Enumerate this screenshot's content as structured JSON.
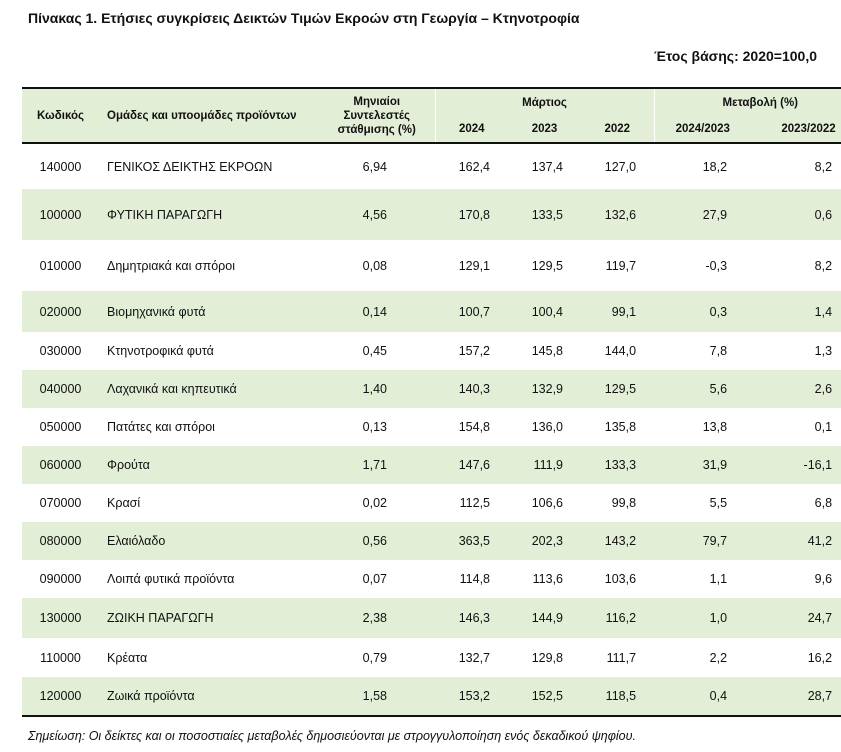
{
  "title": "Πίνακας 1. Ετήσιες συγκρίσεις Δεικτών Τιμών Εκροών στη Γεωργία – Κτηνοτροφία",
  "base_year": "Έτος βάσης: 2020=100,0",
  "headers": {
    "code": "Κωδικός",
    "name": "Ομάδες και υποομάδες προϊόντων",
    "weights": "Μηνιαίοι Συντελεστές στάθμισης (%)",
    "month_group": "Μάρτιος",
    "years": [
      "2024",
      "2023",
      "2022"
    ],
    "change_group": "Μεταβολή (%)",
    "changes": [
      "2024/2023",
      "2023/2022"
    ]
  },
  "rows": [
    {
      "code": "140000",
      "name": "ΓΕΝΙΚΟΣ ΔΕΙΚΤΗΣ ΕΚΡΟΩΝ",
      "weight": "6,94",
      "y2024": "162,4",
      "y2023": "137,4",
      "y2022": "127,0",
      "ch1": "18,2",
      "ch2": "8,2",
      "shaded": false
    },
    {
      "code": "100000",
      "name": "ΦΥΤΙΚΗ ΠΑΡΑΓΩΓΗ",
      "weight": "4,56",
      "y2024": "170,8",
      "y2023": "133,5",
      "y2022": "132,6",
      "ch1": "27,9",
      "ch2": "0,6",
      "shaded": true
    },
    {
      "code": "010000",
      "name": "Δημητριακά και σπόροι",
      "weight": "0,08",
      "y2024": "129,1",
      "y2023": "129,5",
      "y2022": "119,7",
      "ch1": "-0,3",
      "ch2": "8,2",
      "shaded": false
    },
    {
      "code": "020000",
      "name": "Βιομηχανικά φυτά",
      "weight": "0,14",
      "y2024": "100,7",
      "y2023": "100,4",
      "y2022": "99,1",
      "ch1": "0,3",
      "ch2": "1,4",
      "shaded": true
    },
    {
      "code": "030000",
      "name": "Κτηνοτροφικά φυτά",
      "weight": "0,45",
      "y2024": "157,2",
      "y2023": "145,8",
      "y2022": "144,0",
      "ch1": "7,8",
      "ch2": "1,3",
      "shaded": false
    },
    {
      "code": "040000",
      "name": "Λαχανικά και κηπευτικά",
      "weight": "1,40",
      "y2024": "140,3",
      "y2023": "132,9",
      "y2022": "129,5",
      "ch1": "5,6",
      "ch2": "2,6",
      "shaded": true
    },
    {
      "code": "050000",
      "name": "Πατάτες και σπόροι",
      "weight": "0,13",
      "y2024": "154,8",
      "y2023": "136,0",
      "y2022": "135,8",
      "ch1": "13,8",
      "ch2": "0,1",
      "shaded": false
    },
    {
      "code": "060000",
      "name": "Φρούτα",
      "weight": "1,71",
      "y2024": "147,6",
      "y2023": "111,9",
      "y2022": "133,3",
      "ch1": "31,9",
      "ch2": "-16,1",
      "shaded": true
    },
    {
      "code": "070000",
      "name": "Κρασί",
      "weight": "0,02",
      "y2024": "112,5",
      "y2023": "106,6",
      "y2022": "99,8",
      "ch1": "5,5",
      "ch2": "6,8",
      "shaded": false
    },
    {
      "code": "080000",
      "name": "Ελαιόλαδο",
      "weight": "0,56",
      "y2024": "363,5",
      "y2023": "202,3",
      "y2022": "143,2",
      "ch1": "79,7",
      "ch2": "41,2",
      "shaded": true
    },
    {
      "code": "090000",
      "name": "Λοιπά φυτικά προϊόντα",
      "weight": "0,07",
      "y2024": "114,8",
      "y2023": "113,6",
      "y2022": "103,6",
      "ch1": "1,1",
      "ch2": "9,6",
      "shaded": false
    },
    {
      "code": "130000",
      "name": "ΖΩΙΚΗ ΠΑΡΑΓΩΓΗ",
      "weight": "2,38",
      "y2024": "146,3",
      "y2023": "144,9",
      "y2022": "116,2",
      "ch1": "1,0",
      "ch2": "24,7",
      "shaded": true
    },
    {
      "code": "110000",
      "name": "Κρέατα",
      "weight": "0,79",
      "y2024": "132,7",
      "y2023": "129,8",
      "y2022": "111,7",
      "ch1": "2,2",
      "ch2": "16,2",
      "shaded": false
    },
    {
      "code": "120000",
      "name": "Ζωικά προϊόντα",
      "weight": "1,58",
      "y2024": "153,2",
      "y2023": "152,5",
      "y2022": "118,5",
      "ch1": "0,4",
      "ch2": "28,7",
      "shaded": true
    }
  ],
  "note": "Σημείωση: Οι δείκτες και οι ποσοστιαίες μεταβολές δημοσιεύονται με στρογγυλοποίηση ενός δεκαδικού ψηφίου.",
  "colors": {
    "shade": "#e3eed6",
    "rule": "#111111"
  }
}
